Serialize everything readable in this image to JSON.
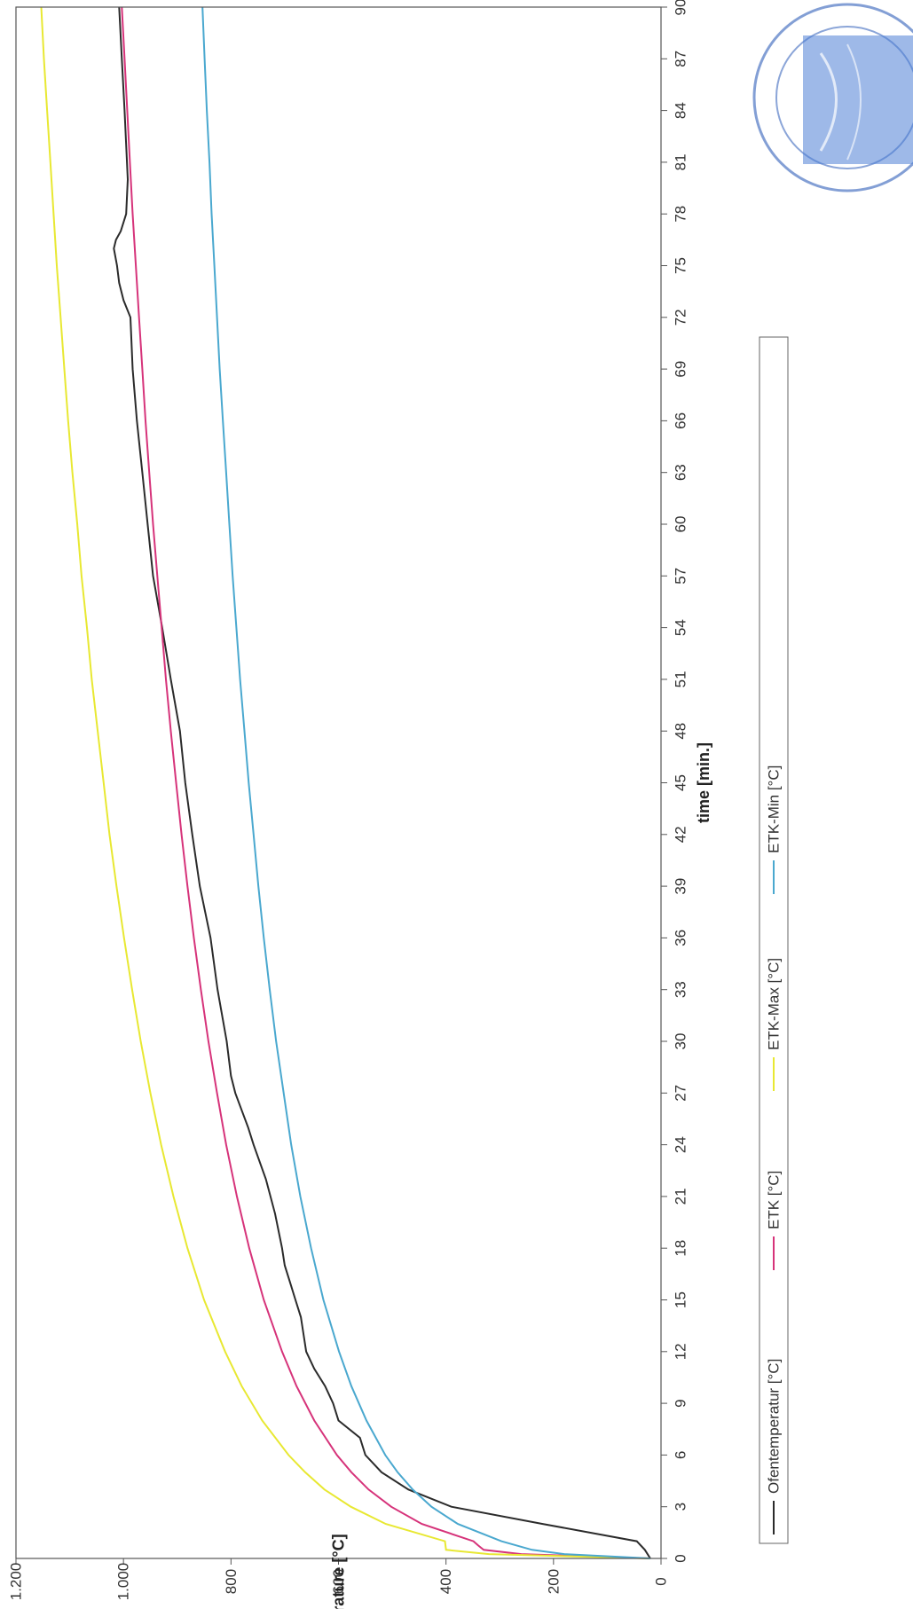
{
  "chart_data": {
    "type": "line",
    "xlabel": "time [min.]",
    "ylabel": "temperature [°C]",
    "xlim": [
      0,
      90
    ],
    "ylim": [
      0,
      1200
    ],
    "x_ticks": [
      0,
      3,
      6,
      9,
      12,
      15,
      18,
      21,
      24,
      27,
      30,
      33,
      36,
      39,
      42,
      45,
      48,
      51,
      54,
      57,
      60,
      63,
      66,
      69,
      72,
      75,
      78,
      81,
      84,
      87,
      90
    ],
    "y_ticks": [
      {
        "value": 0,
        "label": "0"
      },
      {
        "value": 200,
        "label": "200"
      },
      {
        "value": 400,
        "label": "400"
      },
      {
        "value": 600,
        "label": "600"
      },
      {
        "value": 800,
        "label": "800"
      },
      {
        "value": 1000,
        "label": "1.000"
      },
      {
        "value": 1200,
        "label": "1.200"
      }
    ],
    "grid": false,
    "legend_position": "bottom",
    "series": [
      {
        "name": "Ofentemperatur [°C]",
        "color": "#2b2b2b",
        "points": [
          [
            0,
            20
          ],
          [
            0.5,
            30
          ],
          [
            1,
            45
          ],
          [
            2,
            220
          ],
          [
            3,
            390
          ],
          [
            4,
            470
          ],
          [
            5,
            520
          ],
          [
            6,
            550
          ],
          [
            7,
            560
          ],
          [
            8,
            600
          ],
          [
            9,
            610
          ],
          [
            10,
            625
          ],
          [
            11,
            645
          ],
          [
            12,
            660
          ],
          [
            13,
            665
          ],
          [
            14,
            670
          ],
          [
            15,
            680
          ],
          [
            16,
            690
          ],
          [
            17,
            700
          ],
          [
            18,
            705
          ],
          [
            20,
            718
          ],
          [
            22,
            735
          ],
          [
            24,
            758
          ],
          [
            25,
            768
          ],
          [
            26,
            780
          ],
          [
            27,
            792
          ],
          [
            28,
            800
          ],
          [
            30,
            808
          ],
          [
            33,
            825
          ],
          [
            36,
            838
          ],
          [
            39,
            858
          ],
          [
            42,
            872
          ],
          [
            45,
            885
          ],
          [
            48,
            895
          ],
          [
            51,
            912
          ],
          [
            54,
            928
          ],
          [
            57,
            945
          ],
          [
            60,
            955
          ],
          [
            63,
            965
          ],
          [
            66,
            975
          ],
          [
            69,
            983
          ],
          [
            72,
            987
          ],
          [
            73,
            1000
          ],
          [
            74,
            1008
          ],
          [
            75,
            1012
          ],
          [
            76,
            1018
          ],
          [
            76.5,
            1014
          ],
          [
            77,
            1005
          ],
          [
            78,
            995
          ],
          [
            80,
            992
          ],
          [
            82,
            995
          ],
          [
            84,
            998
          ],
          [
            87,
            1003
          ],
          [
            90,
            1008
          ]
        ]
      },
      {
        "name": "ETK [°C]",
        "color": "#d6337a",
        "points": [
          [
            0,
            20
          ],
          [
            0.25,
            260
          ],
          [
            0.5,
            330
          ],
          [
            0.75,
            340
          ],
          [
            1,
            349
          ],
          [
            2,
            445
          ],
          [
            3,
            502
          ],
          [
            4,
            544
          ],
          [
            5,
            576
          ],
          [
            6,
            603
          ],
          [
            8,
            645
          ],
          [
            10,
            678
          ],
          [
            12,
            705
          ],
          [
            15,
            739
          ],
          [
            18,
            766
          ],
          [
            21,
            789
          ],
          [
            24,
            809
          ],
          [
            27,
            826
          ],
          [
            30,
            842
          ],
          [
            33,
            856
          ],
          [
            36,
            869
          ],
          [
            39,
            881
          ],
          [
            42,
            892
          ],
          [
            45,
            902
          ],
          [
            48,
            912
          ],
          [
            51,
            921
          ],
          [
            54,
            929
          ],
          [
            57,
            937
          ],
          [
            60,
            945
          ],
          [
            63,
            952
          ],
          [
            66,
            959
          ],
          [
            69,
            965
          ],
          [
            72,
            971
          ],
          [
            75,
            977
          ],
          [
            78,
            983
          ],
          [
            81,
            988
          ],
          [
            84,
            993
          ],
          [
            87,
            998
          ],
          [
            90,
            1003
          ]
        ]
      },
      {
        "name": "ETK-Max [°C]",
        "color": "#e8e832",
        "points": [
          [
            0,
            20
          ],
          [
            0.25,
            320
          ],
          [
            0.5,
            400
          ],
          [
            1,
            402
          ],
          [
            2,
            512
          ],
          [
            3,
            577
          ],
          [
            4,
            626
          ],
          [
            5,
            662
          ],
          [
            6,
            693
          ],
          [
            8,
            742
          ],
          [
            10,
            780
          ],
          [
            12,
            811
          ],
          [
            15,
            850
          ],
          [
            18,
            881
          ],
          [
            21,
            907
          ],
          [
            24,
            930
          ],
          [
            27,
            950
          ],
          [
            30,
            968
          ],
          [
            33,
            984
          ],
          [
            36,
            999
          ],
          [
            39,
            1013
          ],
          [
            42,
            1026
          ],
          [
            45,
            1037
          ],
          [
            48,
            1048
          ],
          [
            51,
            1059
          ],
          [
            54,
            1068
          ],
          [
            57,
            1078
          ],
          [
            60,
            1086
          ],
          [
            63,
            1095
          ],
          [
            66,
            1103
          ],
          [
            69,
            1110
          ],
          [
            72,
            1117
          ],
          [
            75,
            1124
          ],
          [
            78,
            1130
          ],
          [
            81,
            1136
          ],
          [
            84,
            1142
          ],
          [
            87,
            1148
          ],
          [
            90,
            1153
          ]
        ]
      },
      {
        "name": "ETK-Min [°C]",
        "color": "#4aa8cf",
        "points": [
          [
            0,
            20
          ],
          [
            0.25,
            180
          ],
          [
            0.5,
            240
          ],
          [
            1,
            297
          ],
          [
            2,
            378
          ],
          [
            3,
            427
          ],
          [
            4,
            462
          ],
          [
            5,
            490
          ],
          [
            6,
            513
          ],
          [
            8,
            548
          ],
          [
            10,
            576
          ],
          [
            12,
            599
          ],
          [
            15,
            628
          ],
          [
            18,
            651
          ],
          [
            21,
            671
          ],
          [
            24,
            688
          ],
          [
            27,
            702
          ],
          [
            30,
            716
          ],
          [
            33,
            728
          ],
          [
            36,
            739
          ],
          [
            39,
            749
          ],
          [
            42,
            758
          ],
          [
            45,
            767
          ],
          [
            48,
            775
          ],
          [
            51,
            783
          ],
          [
            54,
            790
          ],
          [
            57,
            797
          ],
          [
            60,
            803
          ],
          [
            63,
            809
          ],
          [
            66,
            815
          ],
          [
            69,
            821
          ],
          [
            72,
            826
          ],
          [
            75,
            831
          ],
          [
            78,
            836
          ],
          [
            81,
            840
          ],
          [
            84,
            845
          ],
          [
            87,
            849
          ],
          [
            90,
            853
          ]
        ]
      }
    ]
  }
}
